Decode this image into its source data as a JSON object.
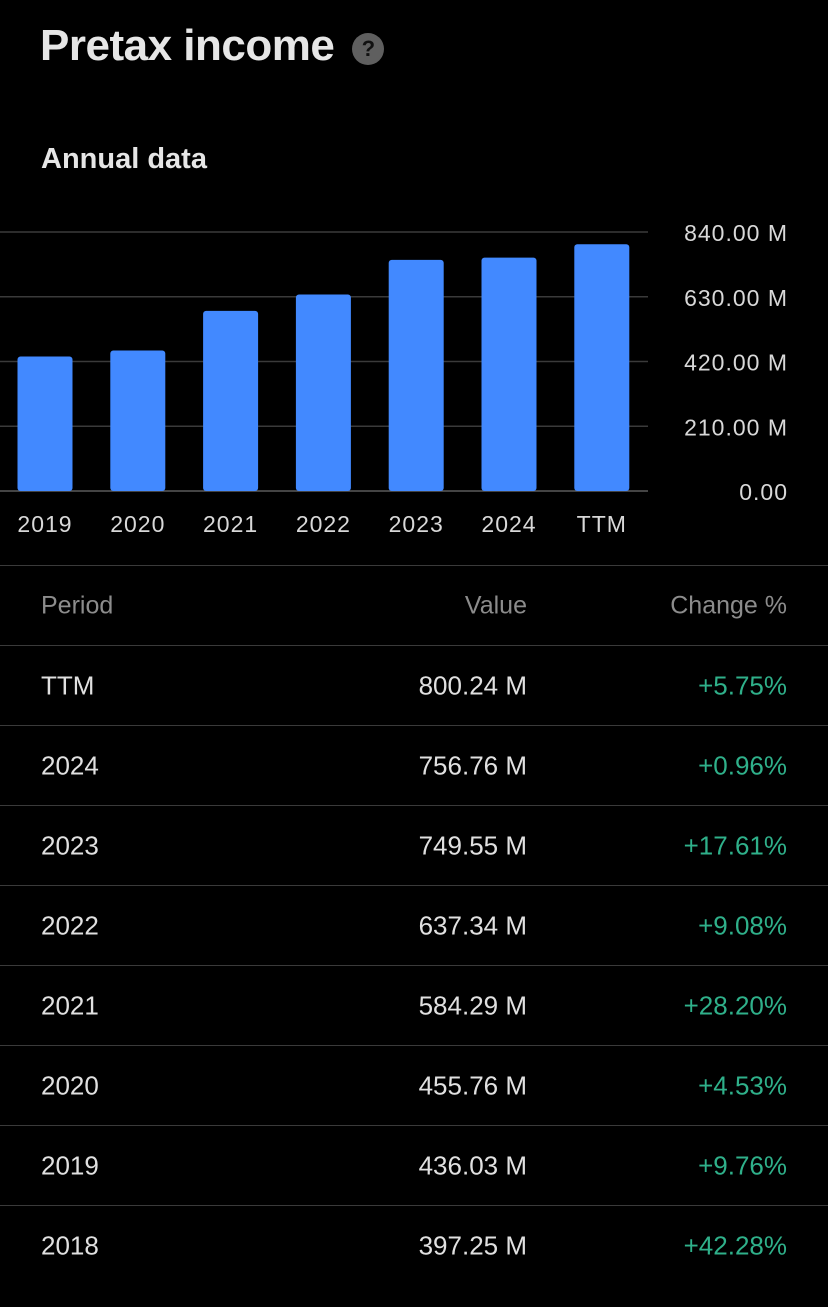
{
  "header": {
    "title": "Pretax income",
    "help_icon": "question-circle-icon",
    "help_glyph": "?"
  },
  "section": {
    "subtitle": "Annual data"
  },
  "colors": {
    "bar": "#4289ff",
    "positive_change": "#2fb08a",
    "background": "#000000",
    "gridline": "#3a3a3a"
  },
  "chart_data": {
    "type": "bar",
    "categories": [
      "2019",
      "2020",
      "2021",
      "2022",
      "2023",
      "2024",
      "TTM"
    ],
    "series": [
      {
        "values": [
          436.03,
          455.76,
          584.29,
          637.34,
          749.55,
          756.76,
          800.24
        ]
      }
    ],
    "unit": "M",
    "ylim": [
      0,
      840
    ],
    "y_ticks": [
      {
        "value": 840,
        "label": "840.00 M"
      },
      {
        "value": 630,
        "label": "630.00 M"
      },
      {
        "value": 420,
        "label": "420.00 M"
      },
      {
        "value": 210,
        "label": "210.00 M"
      },
      {
        "value": 0,
        "label": "0.00"
      }
    ],
    "y_axis_side": "right",
    "grid": true,
    "legend": "none"
  },
  "table": {
    "headers": {
      "period": "Period",
      "value": "Value",
      "change": "Change %"
    },
    "rows": [
      {
        "period": "TTM",
        "value": "800.24 M",
        "change": "+5.75%"
      },
      {
        "period": "2024",
        "value": "756.76 M",
        "change": "+0.96%"
      },
      {
        "period": "2023",
        "value": "749.55 M",
        "change": "+17.61%"
      },
      {
        "period": "2022",
        "value": "637.34 M",
        "change": "+9.08%"
      },
      {
        "period": "2021",
        "value": "584.29 M",
        "change": "+28.20%"
      },
      {
        "period": "2020",
        "value": "455.76 M",
        "change": "+4.53%"
      },
      {
        "period": "2019",
        "value": "436.03 M",
        "change": "+9.76%"
      },
      {
        "period": "2018",
        "value": "397.25 M",
        "change": "+42.28%"
      }
    ]
  }
}
